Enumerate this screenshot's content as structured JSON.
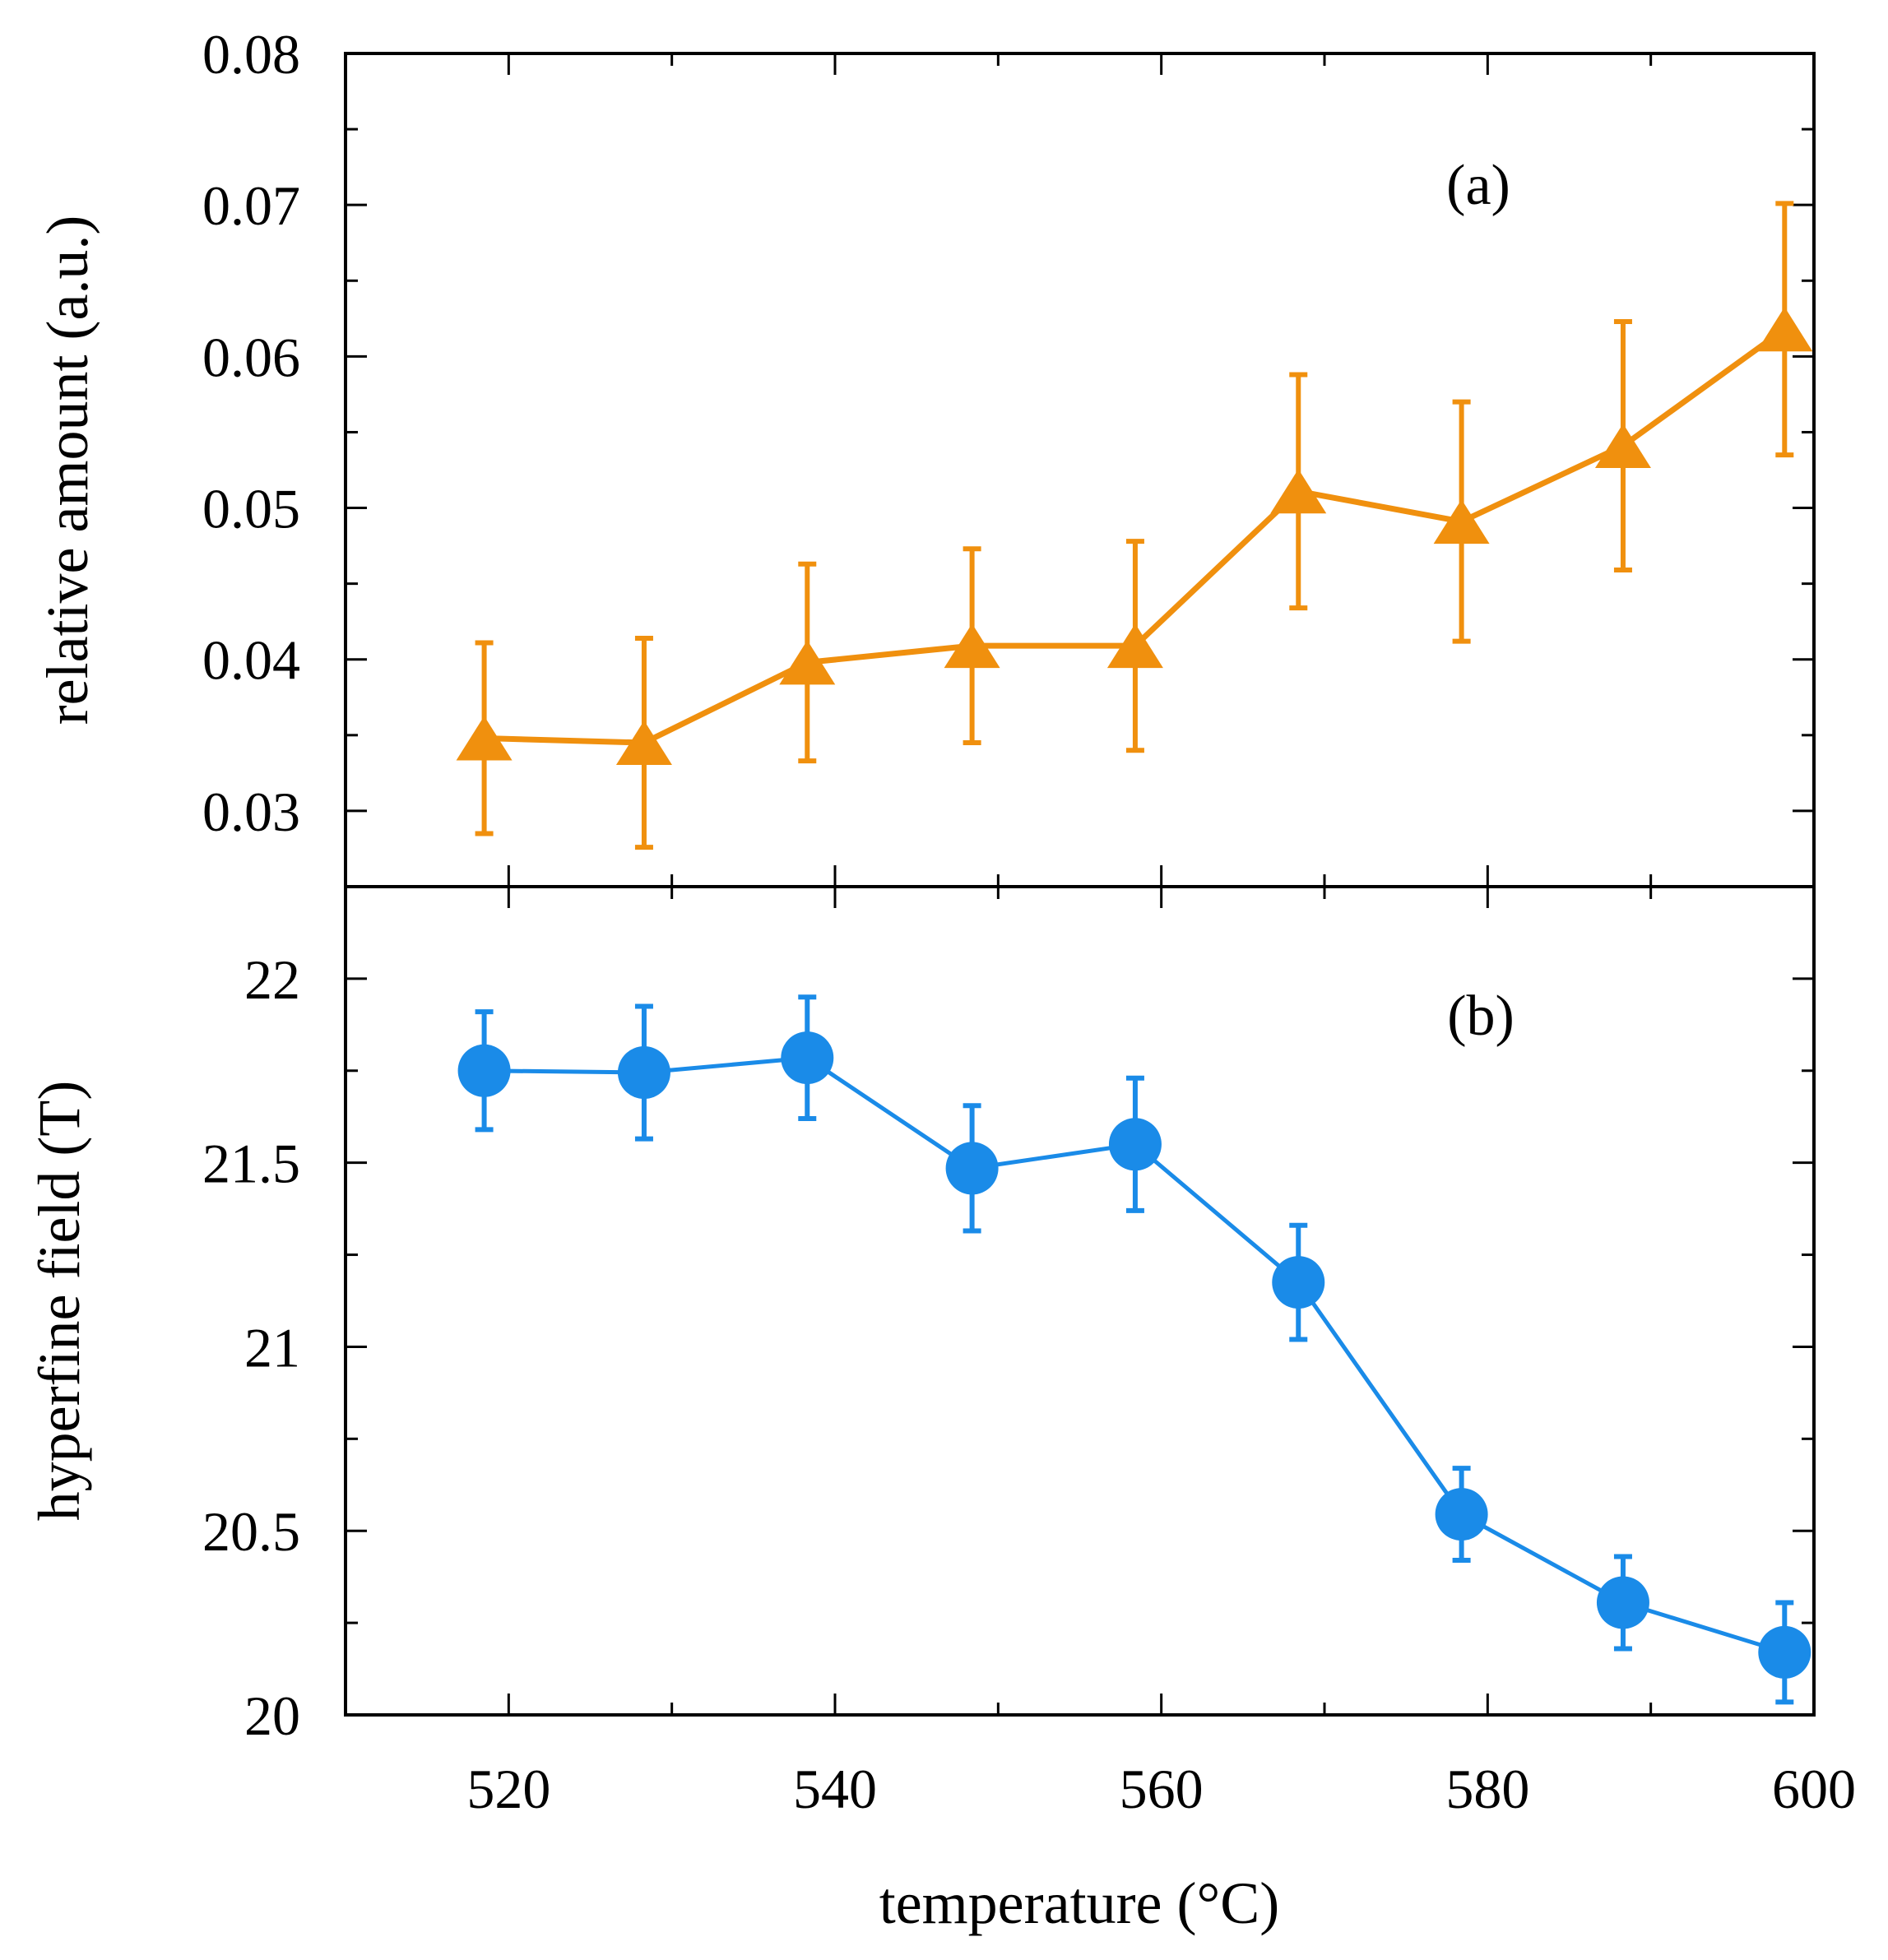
{
  "colors": {
    "series_a": "#f0900e",
    "series_b": "#1a8be8",
    "axis": "#000000"
  },
  "chart_data": [
    {
      "type": "line",
      "panel_label": "(a)",
      "xlabel": "",
      "ylabel": "relative amount (a.u.)",
      "xlim": [
        510,
        600
      ],
      "ylim": [
        0.025,
        0.08
      ],
      "y_ticks": [
        0.03,
        0.04,
        0.05,
        0.06,
        0.07,
        0.08
      ],
      "y_tick_labels": [
        "0.03",
        "0.04",
        "0.05",
        "0.06",
        "0.07",
        "0.08"
      ],
      "marker": "triangle",
      "series": [
        {
          "name": "relative amount",
          "x": [
            518.5,
            528.3,
            538.3,
            548.4,
            558.4,
            568.4,
            578.4,
            588.3,
            598.2
          ],
          "y": [
            0.0348,
            0.0345,
            0.0398,
            0.0409,
            0.0409,
            0.0511,
            0.0491,
            0.0541,
            0.0618
          ],
          "err": [
            0.0063,
            0.0069,
            0.0065,
            0.0064,
            0.0069,
            0.0077,
            0.0079,
            0.0082,
            0.0083
          ]
        }
      ]
    },
    {
      "type": "line",
      "panel_label": "(b)",
      "xlabel": "temperature (°C)",
      "ylabel": "hyperfine field (T)",
      "xlim": [
        510,
        600
      ],
      "ylim": [
        20,
        22.25
      ],
      "x_ticks": [
        520,
        540,
        560,
        580,
        600
      ],
      "x_tick_labels": [
        "520",
        "540",
        "560",
        "580",
        "600"
      ],
      "y_ticks": [
        20,
        20.5,
        21,
        21.5,
        22
      ],
      "y_tick_labels": [
        "20",
        "20.5",
        "21",
        "21.5",
        "22"
      ],
      "marker": "circle",
      "series": [
        {
          "name": "hyperfine field",
          "x": [
            518.5,
            528.3,
            538.3,
            548.4,
            558.4,
            568.4,
            578.4,
            588.3,
            598.2
          ],
          "y": [
            21.75,
            21.745,
            21.785,
            21.485,
            21.55,
            21.175,
            20.545,
            20.305,
            20.17
          ],
          "err": [
            0.16,
            0.18,
            0.165,
            0.17,
            0.18,
            0.155,
            0.125,
            0.125,
            0.135
          ]
        }
      ]
    }
  ]
}
